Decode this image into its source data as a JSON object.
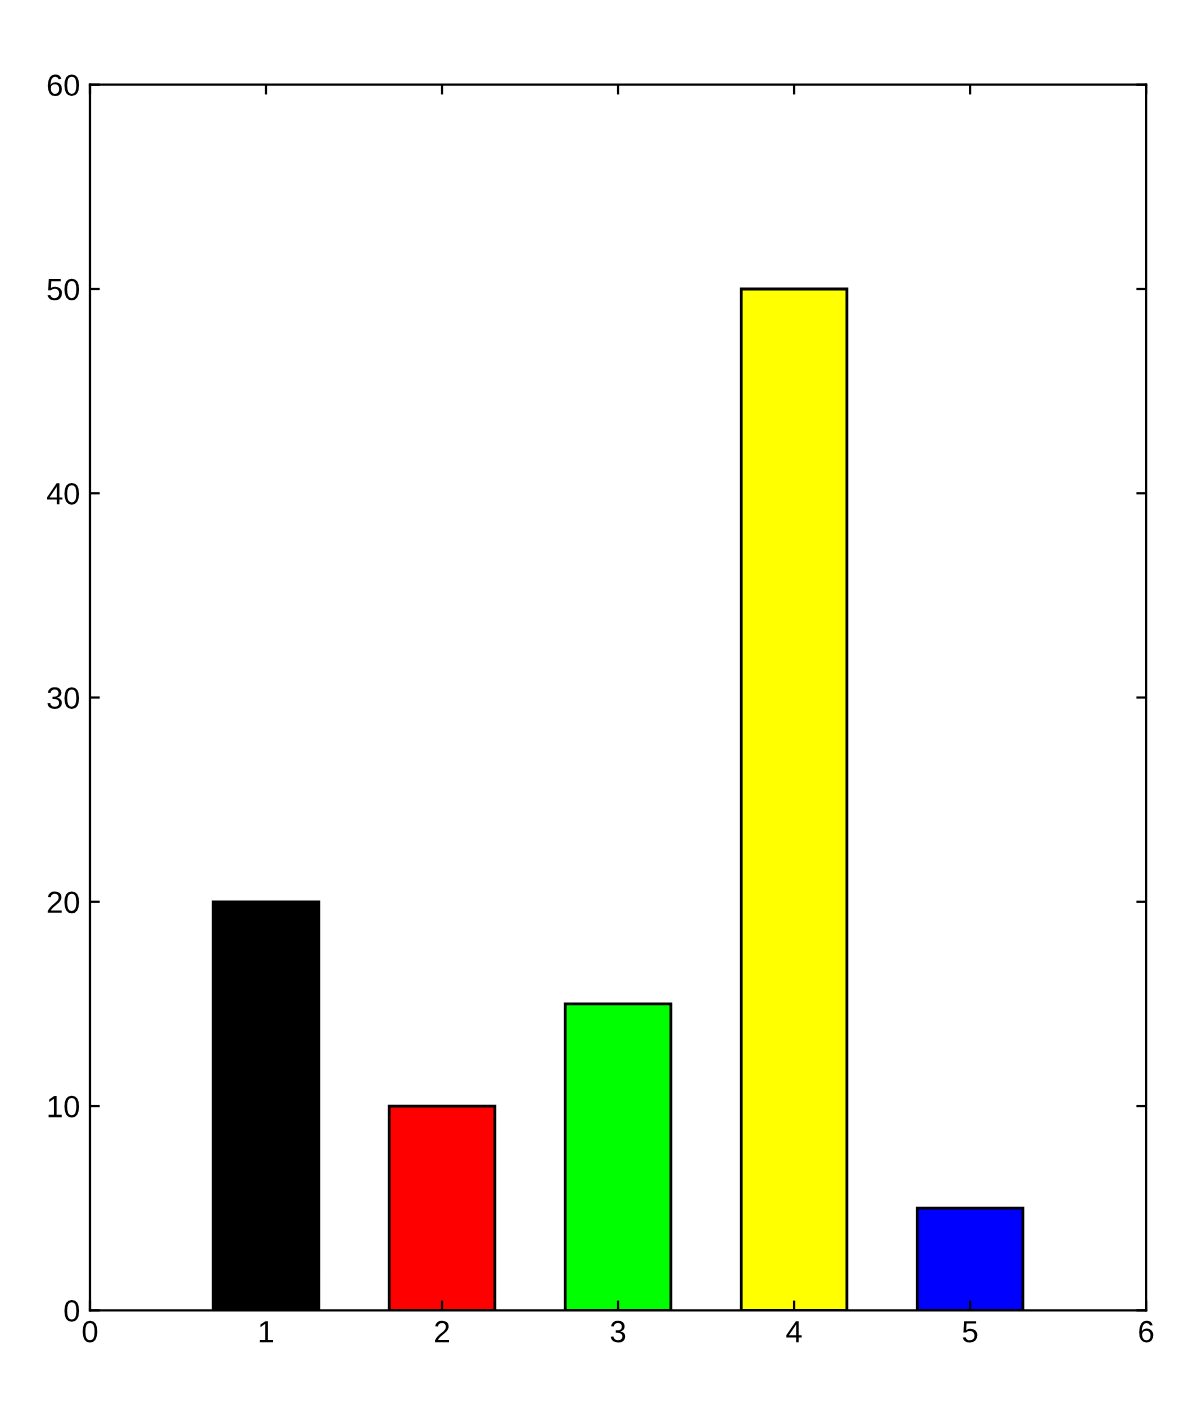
{
  "chart_data": {
    "type": "bar",
    "x": [
      1,
      2,
      3,
      4,
      5
    ],
    "values": [
      20,
      10,
      15,
      50,
      5
    ],
    "colors": [
      "#000000",
      "#ff0000",
      "#00ff00",
      "#ffff00",
      "#0000ff"
    ],
    "xlim": [
      0,
      6
    ],
    "xticks": [
      0,
      1,
      2,
      3,
      4,
      5,
      6
    ],
    "ylim": [
      0,
      60
    ],
    "yticks": [
      0,
      10,
      20,
      30,
      40,
      50,
      60
    ],
    "grid": false,
    "legend": false
  }
}
